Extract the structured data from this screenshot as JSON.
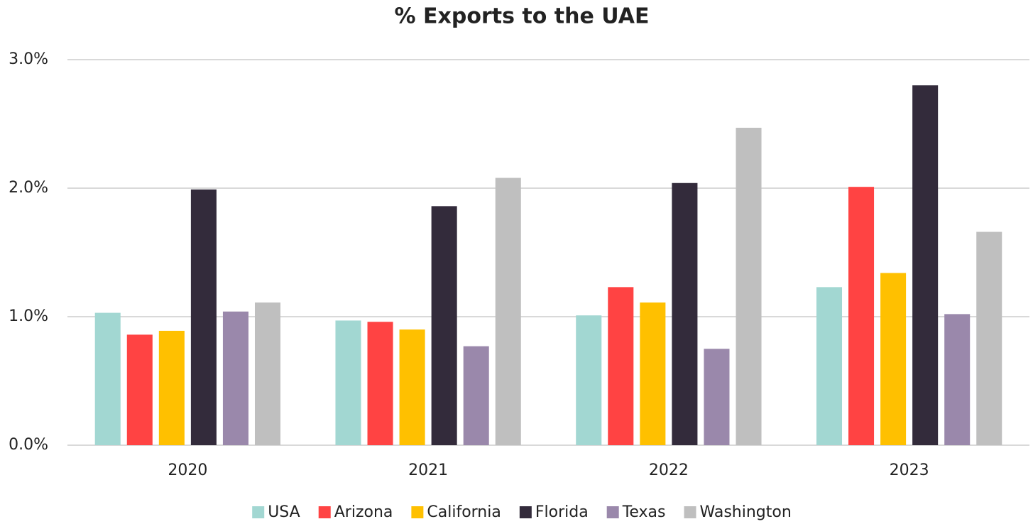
{
  "chart_data": {
    "type": "bar",
    "title": "% Exports to the UAE",
    "categories": [
      "2020",
      "2021",
      "2022",
      "2023"
    ],
    "series": [
      {
        "name": "USA",
        "color": "#a2d7d2",
        "values": [
          1.03,
          0.97,
          1.01,
          1.23
        ]
      },
      {
        "name": "Arizona",
        "color": "#ff4343",
        "values": [
          0.86,
          0.96,
          1.23,
          2.01
        ]
      },
      {
        "name": "California",
        "color": "#ffc000",
        "values": [
          0.89,
          0.9,
          1.11,
          1.34
        ]
      },
      {
        "name": "Florida",
        "color": "#332b3b",
        "values": [
          1.99,
          1.86,
          2.04,
          2.8
        ]
      },
      {
        "name": "Texas",
        "color": "#9a88ab",
        "values": [
          1.04,
          0.77,
          0.75,
          1.02
        ]
      },
      {
        "name": "Washington",
        "color": "#bfbfbf",
        "values": [
          1.11,
          2.08,
          2.47,
          1.66
        ]
      }
    ],
    "ylim": [
      0,
      3
    ],
    "yticks": [
      {
        "value": 0,
        "label": "0.0%"
      },
      {
        "value": 1,
        "label": "1.0%"
      },
      {
        "value": 2,
        "label": "2.0%"
      },
      {
        "value": 3,
        "label": "3.0%"
      }
    ],
    "grid": true,
    "legend": "bottom"
  }
}
